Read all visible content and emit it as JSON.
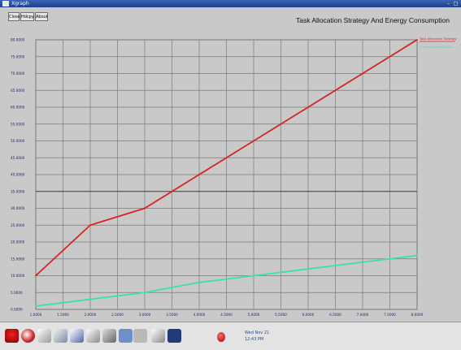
{
  "window": {
    "title": "Xgraph",
    "buttons": [
      "Close",
      "Hdcpy",
      "About"
    ]
  },
  "chart_data": {
    "type": "line",
    "title": "Task Allocation Strategy And Energy Consumption",
    "x_ticks": [
      "1.0000",
      "1.5000",
      "2.0000",
      "2.5000",
      "3.0000",
      "3.5000",
      "4.0000",
      "4.5000",
      "5.0000",
      "5.5000",
      "6.0000",
      "6.5000",
      "7.0000",
      "7.5000",
      "8.0000"
    ],
    "y_ticks": [
      "0.0000",
      "5.0000",
      "10.0000",
      "15.0000",
      "20.0000",
      "25.0000",
      "30.0000",
      "35.0000",
      "40.0000",
      "45.0000",
      "50.0000",
      "55.0000",
      "60.0000",
      "65.0000",
      "70.0000",
      "75.0000",
      "80.0000"
    ],
    "xlim": [
      1,
      8
    ],
    "ylim": [
      0,
      80
    ],
    "grid": true,
    "legend_position": "top-right",
    "series": [
      {
        "name": "Task Allocation Strategy",
        "color": "#d42424",
        "x": [
          1,
          2,
          3,
          4,
          5,
          6,
          7,
          8
        ],
        "y": [
          10,
          25,
          30,
          40,
          50,
          60,
          70,
          80
        ]
      },
      {
        "name": "Energy Consumption",
        "color": "#3fe0a2",
        "x": [
          1,
          2,
          3,
          4,
          5,
          6,
          7,
          8
        ],
        "y": [
          1,
          3,
          5,
          8,
          10,
          12,
          14,
          16
        ]
      }
    ]
  },
  "taskbar": {
    "clock_day": "Wed Nov 21",
    "clock_time": "12:43 PM",
    "icons": [
      "redhat-icon",
      "globe-icon",
      "mail-icon",
      "files-icon",
      "text-editor-icon",
      "presentation-icon",
      "printer-icon",
      "workspace-icon",
      "workspace-icon",
      "panel-icon",
      "terminal-icon"
    ]
  }
}
